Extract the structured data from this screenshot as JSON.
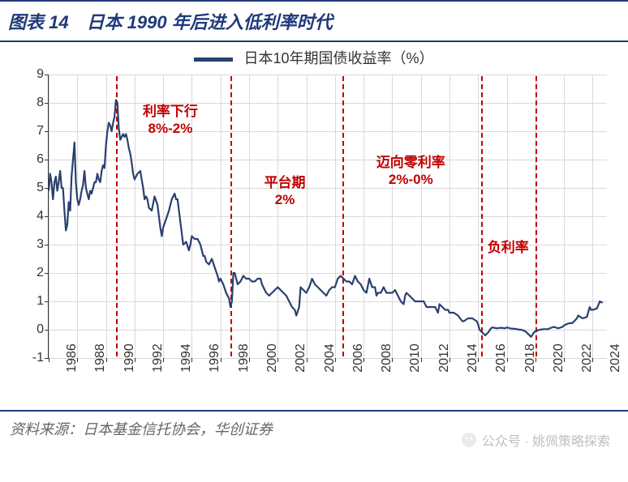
{
  "title": "图表 14　日本 1990 年后进入低利率时代",
  "legend": {
    "label": "日本10年期国债收益率（%）",
    "color": "#2a4070"
  },
  "chart": {
    "type": "line",
    "background_color": "#ffffff",
    "grid_color": "#d9d9d9",
    "axis_color": "#333333",
    "line_color": "#2a4070",
    "line_width": 2.2,
    "ylim": [
      -1,
      9
    ],
    "yticks": [
      -1,
      0,
      1,
      2,
      3,
      4,
      5,
      6,
      7,
      8,
      9
    ],
    "xlim": [
      1986,
      2025
    ],
    "xticks": [
      1986,
      1988,
      1990,
      1992,
      1994,
      1996,
      1998,
      2000,
      2002,
      2004,
      2006,
      2008,
      2010,
      2012,
      2014,
      2016,
      2018,
      2020,
      2022,
      2024
    ],
    "xtick_rotation": -90,
    "tick_fontsize": 16,
    "phase_lines_x": [
      1990.7,
      1998.7,
      2006.5,
      2016.2,
      2020.0
    ],
    "phase_line_color": "#c00000",
    "annotations": [
      {
        "line1": "利率下行",
        "line2": "8%-2%",
        "x": 1994.5,
        "y_top": 8.0
      },
      {
        "line1": "平台期",
        "line2": "2%",
        "x": 2002.5,
        "y_top": 5.5
      },
      {
        "line1": "迈向零利率",
        "line2": "2%-0%",
        "x": 2011.3,
        "y_top": 6.2
      },
      {
        "line1": "负利率",
        "line2": "",
        "x": 2018.1,
        "y_top": 3.2
      }
    ],
    "annotation_color": "#c00000",
    "annotation_fontsize": 17,
    "series": [
      [
        1986.0,
        4.9
      ],
      [
        1986.1,
        5.5
      ],
      [
        1986.2,
        5.2
      ],
      [
        1986.3,
        4.6
      ],
      [
        1986.4,
        5.2
      ],
      [
        1986.5,
        5.4
      ],
      [
        1986.6,
        4.9
      ],
      [
        1986.7,
        5.2
      ],
      [
        1986.8,
        5.6
      ],
      [
        1986.9,
        5.0
      ],
      [
        1987.0,
        5.0
      ],
      [
        1987.1,
        4.2
      ],
      [
        1987.2,
        3.5
      ],
      [
        1987.3,
        3.7
      ],
      [
        1987.4,
        4.5
      ],
      [
        1987.5,
        4.2
      ],
      [
        1987.6,
        5.4
      ],
      [
        1987.7,
        6.0
      ],
      [
        1987.8,
        6.6
      ],
      [
        1987.9,
        5.2
      ],
      [
        1988.0,
        4.6
      ],
      [
        1988.1,
        4.4
      ],
      [
        1988.2,
        4.6
      ],
      [
        1988.3,
        4.9
      ],
      [
        1988.4,
        5.1
      ],
      [
        1988.5,
        5.6
      ],
      [
        1988.6,
        5.0
      ],
      [
        1988.7,
        4.8
      ],
      [
        1988.8,
        4.6
      ],
      [
        1988.9,
        4.9
      ],
      [
        1989.0,
        4.8
      ],
      [
        1989.1,
        5.0
      ],
      [
        1989.2,
        5.2
      ],
      [
        1989.3,
        5.2
      ],
      [
        1989.4,
        5.5
      ],
      [
        1989.5,
        5.3
      ],
      [
        1989.6,
        5.2
      ],
      [
        1989.7,
        5.6
      ],
      [
        1989.8,
        5.8
      ],
      [
        1989.9,
        5.7
      ],
      [
        1990.0,
        6.5
      ],
      [
        1990.1,
        7.0
      ],
      [
        1990.2,
        7.3
      ],
      [
        1990.3,
        7.2
      ],
      [
        1990.4,
        7.0
      ],
      [
        1990.5,
        7.3
      ],
      [
        1990.6,
        7.5
      ],
      [
        1990.7,
        8.1
      ],
      [
        1990.8,
        8.0
      ],
      [
        1990.9,
        7.1
      ],
      [
        1991.0,
        6.7
      ],
      [
        1991.1,
        6.8
      ],
      [
        1991.2,
        6.9
      ],
      [
        1991.3,
        6.8
      ],
      [
        1991.4,
        6.9
      ],
      [
        1991.5,
        6.7
      ],
      [
        1991.6,
        6.4
      ],
      [
        1991.7,
        6.2
      ],
      [
        1991.8,
        5.9
      ],
      [
        1991.9,
        5.5
      ],
      [
        1992.0,
        5.3
      ],
      [
        1992.2,
        5.5
      ],
      [
        1992.4,
        5.6
      ],
      [
        1992.6,
        5.0
      ],
      [
        1992.7,
        4.6
      ],
      [
        1992.8,
        4.7
      ],
      [
        1992.9,
        4.6
      ],
      [
        1993.0,
        4.3
      ],
      [
        1993.2,
        4.2
      ],
      [
        1993.4,
        4.7
      ],
      [
        1993.6,
        4.4
      ],
      [
        1993.8,
        3.6
      ],
      [
        1993.9,
        3.3
      ],
      [
        1994.0,
        3.6
      ],
      [
        1994.2,
        3.9
      ],
      [
        1994.4,
        4.2
      ],
      [
        1994.6,
        4.6
      ],
      [
        1994.8,
        4.8
      ],
      [
        1994.9,
        4.6
      ],
      [
        1995.0,
        4.6
      ],
      [
        1995.2,
        3.8
      ],
      [
        1995.4,
        3.0
      ],
      [
        1995.6,
        3.1
      ],
      [
        1995.8,
        2.8
      ],
      [
        1995.9,
        3.0
      ],
      [
        1996.0,
        3.3
      ],
      [
        1996.2,
        3.2
      ],
      [
        1996.4,
        3.2
      ],
      [
        1996.6,
        3.0
      ],
      [
        1996.8,
        2.6
      ],
      [
        1996.9,
        2.6
      ],
      [
        1997.0,
        2.4
      ],
      [
        1997.2,
        2.3
      ],
      [
        1997.4,
        2.5
      ],
      [
        1997.6,
        2.2
      ],
      [
        1997.8,
        1.9
      ],
      [
        1997.9,
        1.7
      ],
      [
        1998.0,
        1.8
      ],
      [
        1998.2,
        1.6
      ],
      [
        1998.4,
        1.3
      ],
      [
        1998.6,
        1.1
      ],
      [
        1998.7,
        0.8
      ],
      [
        1998.8,
        1.0
      ],
      [
        1998.9,
        2.0
      ],
      [
        1999.0,
        2.0
      ],
      [
        1999.2,
        1.6
      ],
      [
        1999.4,
        1.7
      ],
      [
        1999.6,
        1.9
      ],
      [
        1999.8,
        1.8
      ],
      [
        2000.0,
        1.8
      ],
      [
        2000.2,
        1.7
      ],
      [
        2000.4,
        1.7
      ],
      [
        2000.6,
        1.8
      ],
      [
        2000.8,
        1.8
      ],
      [
        2000.9,
        1.6
      ],
      [
        2001.0,
        1.5
      ],
      [
        2001.2,
        1.3
      ],
      [
        2001.4,
        1.2
      ],
      [
        2001.6,
        1.3
      ],
      [
        2001.8,
        1.4
      ],
      [
        2002.0,
        1.5
      ],
      [
        2002.2,
        1.4
      ],
      [
        2002.4,
        1.3
      ],
      [
        2002.6,
        1.2
      ],
      [
        2002.8,
        1.0
      ],
      [
        2002.9,
        0.9
      ],
      [
        2003.0,
        0.8
      ],
      [
        2003.2,
        0.7
      ],
      [
        2003.3,
        0.5
      ],
      [
        2003.5,
        0.8
      ],
      [
        2003.6,
        1.5
      ],
      [
        2003.8,
        1.4
      ],
      [
        2004.0,
        1.3
      ],
      [
        2004.2,
        1.5
      ],
      [
        2004.4,
        1.8
      ],
      [
        2004.6,
        1.6
      ],
      [
        2004.8,
        1.5
      ],
      [
        2005.0,
        1.4
      ],
      [
        2005.2,
        1.3
      ],
      [
        2005.4,
        1.2
      ],
      [
        2005.6,
        1.4
      ],
      [
        2005.8,
        1.5
      ],
      [
        2006.0,
        1.5
      ],
      [
        2006.2,
        1.8
      ],
      [
        2006.4,
        1.9
      ],
      [
        2006.6,
        1.8
      ],
      [
        2006.8,
        1.7
      ],
      [
        2007.0,
        1.7
      ],
      [
        2007.2,
        1.6
      ],
      [
        2007.4,
        1.9
      ],
      [
        2007.6,
        1.7
      ],
      [
        2007.8,
        1.6
      ],
      [
        2008.0,
        1.4
      ],
      [
        2008.2,
        1.3
      ],
      [
        2008.4,
        1.8
      ],
      [
        2008.6,
        1.5
      ],
      [
        2008.8,
        1.5
      ],
      [
        2008.9,
        1.2
      ],
      [
        2009.0,
        1.3
      ],
      [
        2009.2,
        1.3
      ],
      [
        2009.4,
        1.5
      ],
      [
        2009.6,
        1.3
      ],
      [
        2009.8,
        1.3
      ],
      [
        2010.0,
        1.3
      ],
      [
        2010.2,
        1.4
      ],
      [
        2010.4,
        1.2
      ],
      [
        2010.6,
        1.0
      ],
      [
        2010.8,
        0.9
      ],
      [
        2010.9,
        1.2
      ],
      [
        2011.0,
        1.3
      ],
      [
        2011.2,
        1.2
      ],
      [
        2011.4,
        1.1
      ],
      [
        2011.6,
        1.0
      ],
      [
        2011.8,
        1.0
      ],
      [
        2012.0,
        1.0
      ],
      [
        2012.2,
        1.0
      ],
      [
        2012.4,
        0.8
      ],
      [
        2012.6,
        0.8
      ],
      [
        2012.8,
        0.8
      ],
      [
        2013.0,
        0.8
      ],
      [
        2013.2,
        0.6
      ],
      [
        2013.3,
        0.9
      ],
      [
        2013.5,
        0.8
      ],
      [
        2013.7,
        0.7
      ],
      [
        2013.9,
        0.7
      ],
      [
        2014.0,
        0.6
      ],
      [
        2014.3,
        0.6
      ],
      [
        2014.6,
        0.5
      ],
      [
        2014.9,
        0.3
      ],
      [
        2015.0,
        0.3
      ],
      [
        2015.3,
        0.4
      ],
      [
        2015.6,
        0.4
      ],
      [
        2015.9,
        0.3
      ],
      [
        2016.0,
        0.2
      ],
      [
        2016.1,
        0.0
      ],
      [
        2016.3,
        -0.1
      ],
      [
        2016.5,
        -0.2
      ],
      [
        2016.7,
        -0.1
      ],
      [
        2016.9,
        0.05
      ],
      [
        2017.0,
        0.08
      ],
      [
        2017.3,
        0.05
      ],
      [
        2017.6,
        0.07
      ],
      [
        2017.9,
        0.05
      ],
      [
        2018.0,
        0.08
      ],
      [
        2018.3,
        0.04
      ],
      [
        2018.6,
        0.03
      ],
      [
        2018.9,
        0.0
      ],
      [
        2019.0,
        0.0
      ],
      [
        2019.3,
        -0.05
      ],
      [
        2019.5,
        -0.15
      ],
      [
        2019.7,
        -0.25
      ],
      [
        2019.9,
        -0.1
      ],
      [
        2020.0,
        -0.05
      ],
      [
        2020.3,
        0.0
      ],
      [
        2020.6,
        0.02
      ],
      [
        2020.9,
        0.02
      ],
      [
        2021.0,
        0.05
      ],
      [
        2021.3,
        0.1
      ],
      [
        2021.6,
        0.05
      ],
      [
        2021.9,
        0.1
      ],
      [
        2022.0,
        0.15
      ],
      [
        2022.3,
        0.22
      ],
      [
        2022.6,
        0.24
      ],
      [
        2022.9,
        0.4
      ],
      [
        2023.0,
        0.5
      ],
      [
        2023.3,
        0.4
      ],
      [
        2023.6,
        0.45
      ],
      [
        2023.8,
        0.8
      ],
      [
        2023.9,
        0.7
      ],
      [
        2024.0,
        0.7
      ],
      [
        2024.3,
        0.75
      ],
      [
        2024.5,
        1.0
      ],
      [
        2024.7,
        0.95
      ]
    ]
  },
  "source": "资料来源：日本基金信托协会，华创证券",
  "watermark": "公众号 · 姚佩策略探索",
  "frame_color": "#1f3a7a"
}
